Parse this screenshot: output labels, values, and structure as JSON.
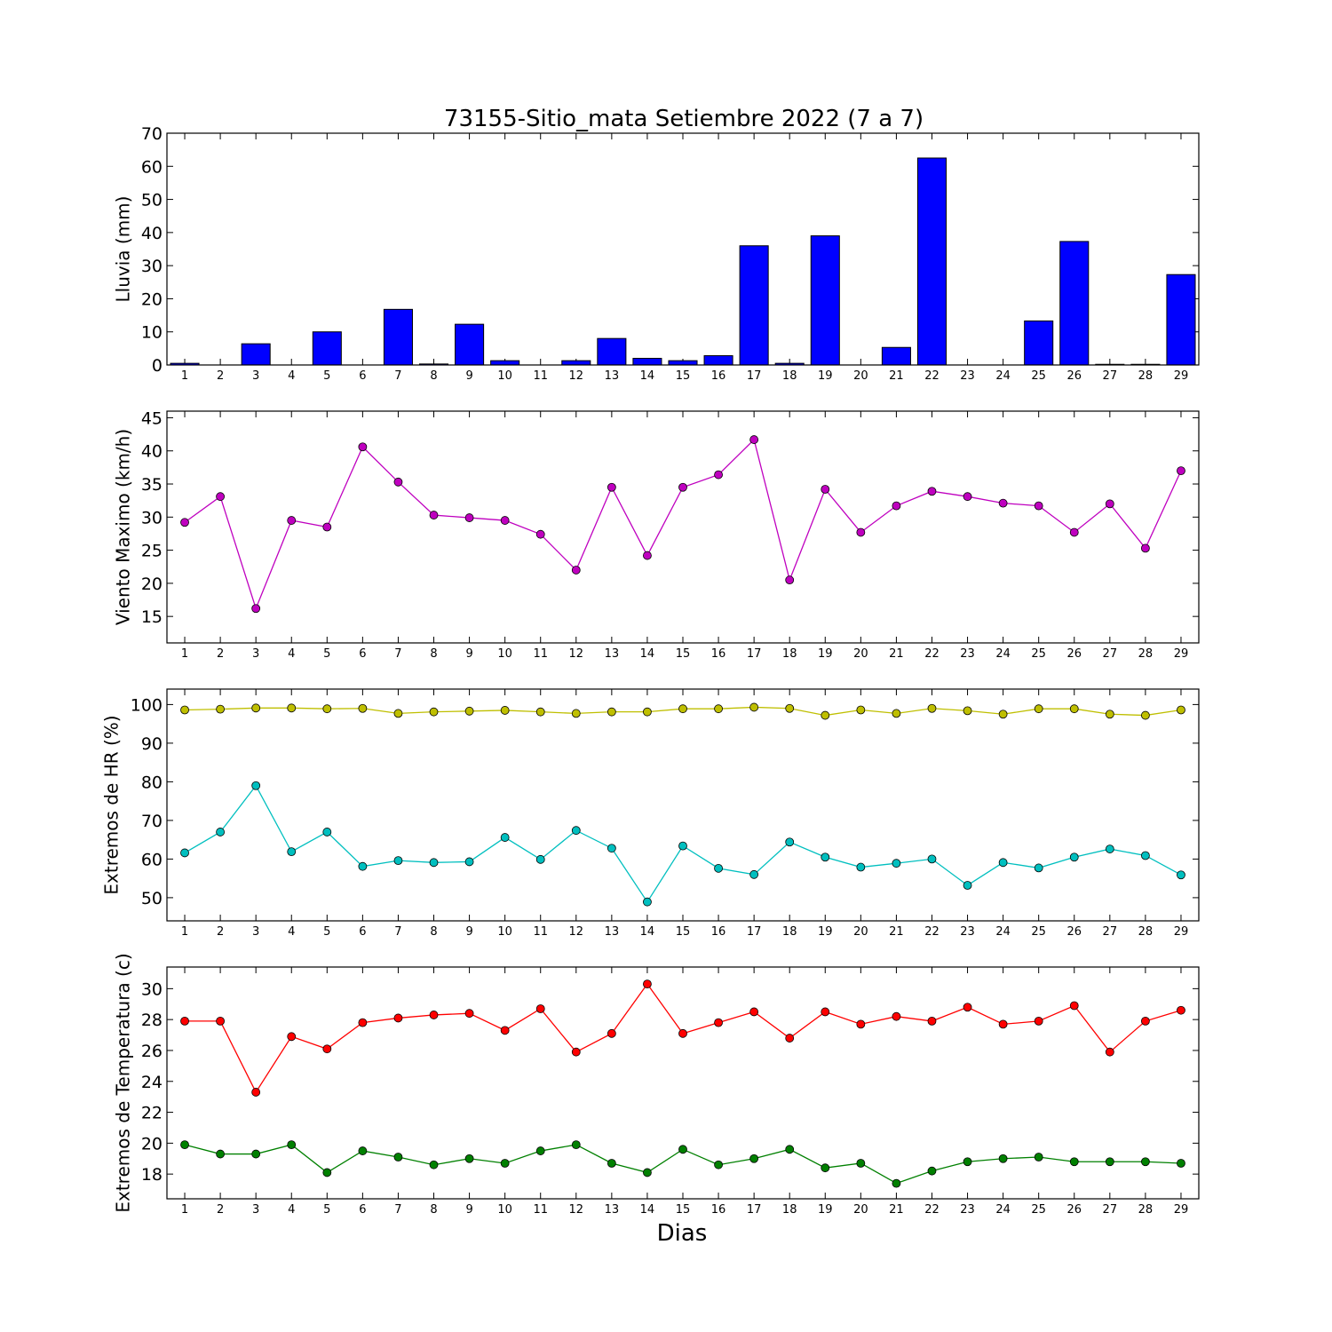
{
  "title": "73155-Sitio_mata Setiembre 2022  (7 a 7)",
  "xlabel": "Dias",
  "chart_data": [
    {
      "type": "bar",
      "ylabel": "Lluvia (mm)",
      "ylim": [
        0,
        70
      ],
      "yticks": [
        0,
        10,
        20,
        30,
        40,
        50,
        60,
        70
      ],
      "categories": [
        "1",
        "2",
        "3",
        "4",
        "5",
        "6",
        "7",
        "8",
        "9",
        "10",
        "11",
        "12",
        "13",
        "14",
        "15",
        "16",
        "17",
        "18",
        "19",
        "20",
        "21",
        "22",
        "23",
        "24",
        "25",
        "26",
        "27",
        "28",
        "29"
      ],
      "bar_color": "#0000ff",
      "series": [
        {
          "values": [
            0.5,
            0,
            6.4,
            0,
            10.0,
            0,
            16.8,
            0.3,
            12.3,
            1.3,
            0,
            1.3,
            8.0,
            2.0,
            1.3,
            2.8,
            36.0,
            0.5,
            39.0,
            0,
            5.3,
            62.5,
            0,
            0,
            13.3,
            37.3,
            0.2,
            0.2,
            27.3
          ]
        }
      ]
    },
    {
      "type": "line",
      "ylabel": "Viento Maximo (km/h)",
      "ylim": [
        11,
        46
      ],
      "yticks": [
        15,
        20,
        25,
        30,
        35,
        40,
        45
      ],
      "x": [
        "1",
        "2",
        "3",
        "4",
        "5",
        "6",
        "7",
        "8",
        "9",
        "10",
        "11",
        "12",
        "13",
        "14",
        "15",
        "16",
        "17",
        "18",
        "19",
        "20",
        "21",
        "22",
        "23",
        "24",
        "25",
        "26",
        "27",
        "28",
        "29"
      ],
      "series": [
        {
          "color": "#bf00bf",
          "values": [
            29.2,
            33.1,
            16.2,
            29.5,
            28.5,
            40.6,
            35.3,
            30.3,
            29.9,
            29.5,
            27.4,
            22.0,
            34.5,
            24.2,
            34.5,
            36.4,
            41.7,
            20.5,
            34.2,
            27.7,
            31.7,
            33.9,
            33.1,
            32.1,
            31.7,
            27.7,
            32.0,
            25.3,
            37.0
          ]
        }
      ]
    },
    {
      "type": "line",
      "ylabel": "Extremos de HR (%)",
      "ylim": [
        44,
        104
      ],
      "yticks": [
        50,
        60,
        70,
        80,
        90,
        100
      ],
      "x": [
        "1",
        "2",
        "3",
        "4",
        "5",
        "6",
        "7",
        "8",
        "9",
        "10",
        "11",
        "12",
        "13",
        "14",
        "15",
        "16",
        "17",
        "18",
        "19",
        "20",
        "21",
        "22",
        "23",
        "24",
        "25",
        "26",
        "27",
        "28",
        "29"
      ],
      "series": [
        {
          "color": "#bfbf00",
          "values": [
            98.6,
            98.8,
            99.1,
            99.1,
            98.9,
            99.0,
            97.7,
            98.1,
            98.3,
            98.5,
            98.1,
            97.7,
            98.1,
            98.1,
            98.9,
            98.9,
            99.3,
            99.0,
            97.2,
            98.6,
            97.7,
            99.0,
            98.4,
            97.5,
            98.9,
            98.9,
            97.5,
            97.2,
            98.6
          ]
        },
        {
          "color": "#00bfbf",
          "values": [
            61.6,
            67.0,
            79.0,
            61.9,
            67.0,
            58.1,
            59.6,
            59.1,
            59.3,
            65.6,
            59.9,
            67.4,
            62.8,
            48.9,
            63.4,
            57.6,
            56.0,
            64.4,
            60.5,
            57.9,
            58.9,
            60.0,
            53.2,
            59.1,
            57.7,
            60.5,
            62.6,
            60.9,
            55.9
          ]
        }
      ]
    },
    {
      "type": "line",
      "ylabel": "Extremos de Temperatura (c)",
      "ylim": [
        16.4,
        31.4
      ],
      "yticks": [
        18,
        20,
        22,
        24,
        26,
        28,
        30
      ],
      "x": [
        "1",
        "2",
        "3",
        "4",
        "5",
        "6",
        "7",
        "8",
        "9",
        "10",
        "11",
        "12",
        "13",
        "14",
        "15",
        "16",
        "17",
        "18",
        "19",
        "20",
        "21",
        "22",
        "23",
        "24",
        "25",
        "26",
        "27",
        "28",
        "29"
      ],
      "series": [
        {
          "color": "#ff0000",
          "values": [
            27.9,
            27.9,
            23.3,
            26.9,
            26.1,
            27.8,
            28.1,
            28.3,
            28.4,
            27.3,
            28.7,
            25.9,
            27.1,
            30.3,
            27.1,
            27.8,
            28.5,
            26.8,
            28.5,
            27.7,
            28.2,
            27.9,
            28.8,
            27.7,
            27.9,
            28.9,
            25.9,
            27.9,
            28.6
          ]
        },
        {
          "color": "#008000",
          "values": [
            19.9,
            19.3,
            19.3,
            19.9,
            18.1,
            19.5,
            19.1,
            18.6,
            19.0,
            18.7,
            19.5,
            19.9,
            18.7,
            18.1,
            19.6,
            18.6,
            19.0,
            19.6,
            18.4,
            18.7,
            17.4,
            18.2,
            18.8,
            19.0,
            19.1,
            18.8,
            18.8,
            18.8,
            18.7
          ]
        }
      ]
    }
  ]
}
